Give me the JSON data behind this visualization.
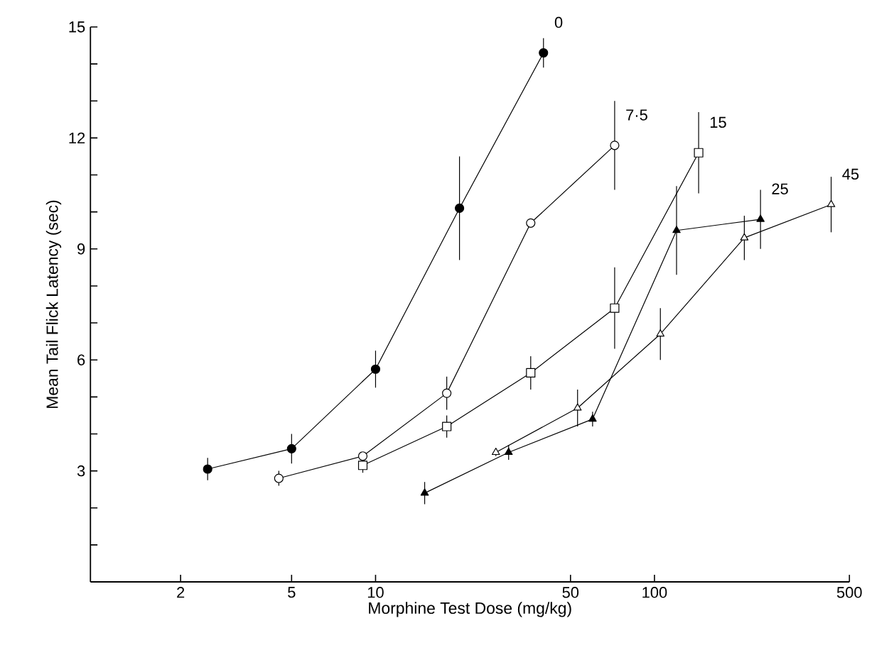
{
  "chart_data": {
    "type": "line",
    "xlabel": "Morphine Test Dose (mg/kg)",
    "ylabel": "Mean Tail Flick Latency (sec)",
    "log": "x",
    "xlim": [
      0.95,
      500
    ],
    "xticks": [
      2,
      5,
      10,
      50,
      100,
      500
    ],
    "ylim": [
      0,
      15
    ],
    "yticks": [
      {
        "value": 1,
        "label": null
      },
      {
        "value": 2,
        "label": null
      },
      3,
      {
        "value": 4,
        "label": null
      },
      {
        "value": 5,
        "label": null
      },
      6,
      {
        "value": 7,
        "label": null
      },
      {
        "value": 8,
        "label": null
      },
      9,
      {
        "value": 10,
        "label": null
      },
      {
        "value": 11,
        "label": null
      },
      12,
      {
        "value": 13,
        "label": null
      },
      {
        "value": 14,
        "label": null
      },
      15
    ],
    "grid": false,
    "line_style": "solid",
    "series": [
      {
        "name": "0",
        "color": "#000000",
        "marker": "circle",
        "x": [
          2.5,
          5,
          10,
          20,
          40
        ],
        "values": [
          3.05,
          3.6,
          5.75,
          10.1,
          14.3
        ],
        "errors": [
          0.3,
          0.4,
          0.5,
          1.4,
          0.4
        ]
      },
      {
        "name": "7·5",
        "color": "#ffffff",
        "marker": "circle",
        "x": [
          4.5,
          9,
          18,
          36,
          72
        ],
        "values": [
          2.8,
          3.4,
          5.1,
          9.7,
          11.8
        ],
        "errors": [
          0.2,
          null,
          0.45,
          0.1,
          1.2
        ]
      },
      {
        "name": "15",
        "color": "#ffffff",
        "marker": "square",
        "x": [
          9,
          18,
          36,
          72,
          144
        ],
        "values": [
          3.15,
          4.2,
          5.65,
          7.4,
          11.6
        ],
        "errors": [
          0.2,
          0.3,
          0.45,
          1.1,
          1.1
        ]
      },
      {
        "name": "25",
        "color": "#000000",
        "marker": "triangle",
        "x": [
          15,
          30,
          60,
          120,
          240
        ],
        "values": [
          2.4,
          3.5,
          4.4,
          9.5,
          9.8
        ],
        "errors": [
          0.3,
          0.2,
          0.2,
          1.2,
          0.8
        ]
      },
      {
        "name": "45",
        "color": "#ffffff",
        "marker": "triangle",
        "x": [
          27,
          53,
          105,
          210,
          430
        ],
        "values": [
          3.5,
          4.7,
          6.7,
          9.3,
          10.2
        ],
        "errors": [
          0.1,
          0.5,
          0.7,
          0.6,
          0.75
        ]
      }
    ]
  }
}
